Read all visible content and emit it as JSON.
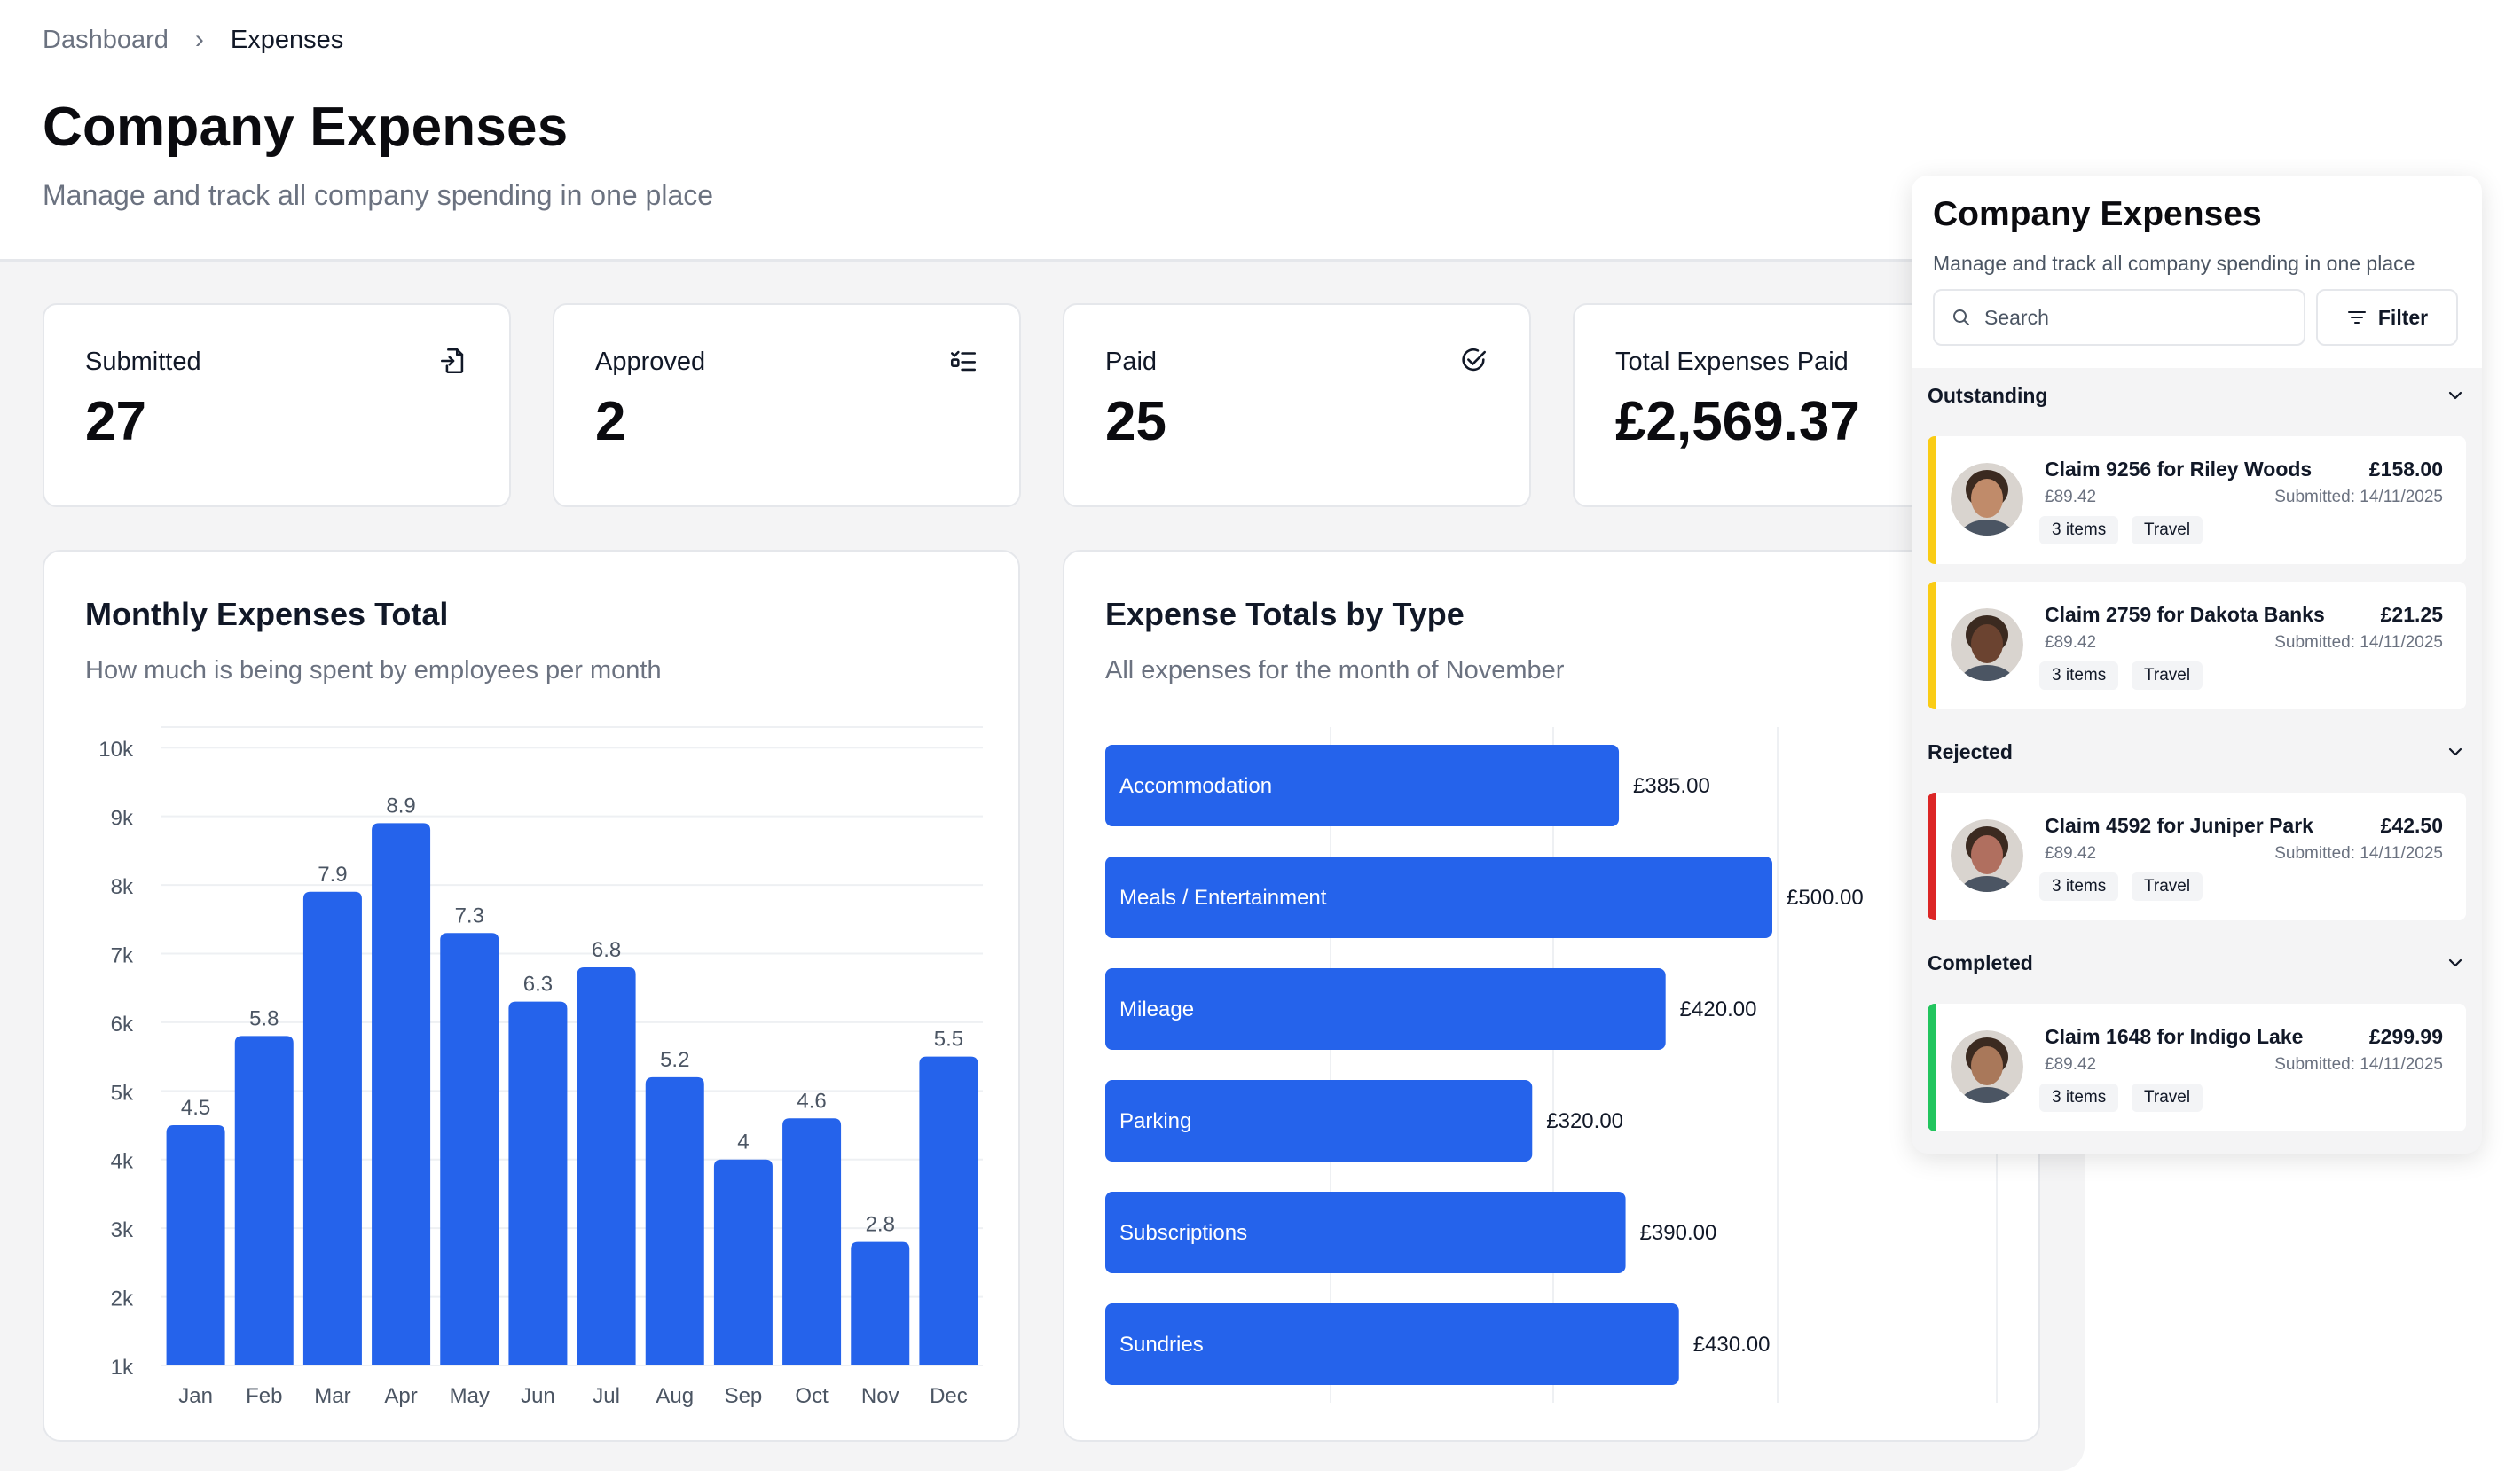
{
  "breadcrumb": {
    "parent": "Dashboard",
    "current": "Expenses"
  },
  "page": {
    "title": "Company Expenses",
    "subtitle": "Manage and track all company spending in one place"
  },
  "stats": [
    {
      "label": "Submitted",
      "value": "27",
      "icon": "file-import-icon"
    },
    {
      "label": "Approved",
      "value": "2",
      "icon": "checklist-icon"
    },
    {
      "label": "Paid",
      "value": "25",
      "icon": "check-circle-icon"
    },
    {
      "label": "Total Expenses Paid",
      "value": "£2,569.37"
    }
  ],
  "monthly_chart": {
    "title": "Monthly Expenses Total",
    "subtitle": "How much is being spent by employees per month"
  },
  "type_chart": {
    "title": "Expense Totals by Type",
    "subtitle": "All expenses for the month of November"
  },
  "chart_data": [
    {
      "type": "bar",
      "title": "Monthly Expenses Total",
      "subtitle": "How much is being spent by employees per month",
      "categories": [
        "Jan",
        "Feb",
        "Mar",
        "Apr",
        "May",
        "Jun",
        "Jul",
        "Aug",
        "Sep",
        "Oct",
        "Nov",
        "Dec"
      ],
      "values": [
        4.5,
        5.8,
        7.9,
        8.9,
        7.3,
        6.3,
        6.8,
        5.2,
        4,
        4.6,
        2.8,
        5.5
      ],
      "data_labels": [
        "4.5",
        "5.8",
        "7.9",
        "8.9",
        "7.3",
        "6.3",
        "6.8",
        "5.2",
        "4",
        "4.6",
        "2.8",
        "5.5"
      ],
      "y_ticks": [
        "10k",
        "9k",
        "8k",
        "7k",
        "6k",
        "5k",
        "4k",
        "3k",
        "2k",
        "1k"
      ],
      "ylim": [
        1,
        10.3
      ],
      "grid": true,
      "color": "#2563eb"
    },
    {
      "type": "bar",
      "orientation": "horizontal",
      "title": "Expense Totals by Type",
      "subtitle": "All expenses for the month of November",
      "categories": [
        "Accommodation",
        "Meals / Entertainment",
        "Mileage",
        "Parking",
        "Subscriptions",
        "Sundries"
      ],
      "values": [
        385,
        500,
        420,
        320,
        390,
        430
      ],
      "data_labels": [
        "£385.00",
        "£500.00",
        "£420.00",
        "£320.00",
        "£390.00",
        "£430.00"
      ],
      "xlim": [
        0,
        500
      ],
      "grid": true,
      "color": "#2563eb"
    }
  ],
  "side_panel": {
    "title": "Company Expenses",
    "subtitle": "Manage and track all company spending in one place",
    "search_placeholder": "Search",
    "filter_label": "Filter",
    "sections": [
      {
        "name": "Outstanding",
        "color": "#facc15",
        "claims": [
          {
            "title": "Claim 9256 for Riley Woods",
            "amount": "£158.00",
            "sub": "£89.42",
            "date": "Submitted: 14/11/2025",
            "items": "3 items",
            "category": "Travel",
            "avatar": "#c08b6a"
          },
          {
            "title": "Claim 2759 for Dakota Banks",
            "amount": "£21.25",
            "sub": "£89.42",
            "date": "Submitted: 14/11/2025",
            "items": "3 items",
            "category": "Travel",
            "avatar": "#6b4330"
          }
        ]
      },
      {
        "name": "Rejected",
        "color": "#dc2626",
        "claims": [
          {
            "title": "Claim 4592 for Juniper Park",
            "amount": "£42.50",
            "sub": "£89.42",
            "date": "Submitted: 14/11/2025",
            "items": "3 items",
            "category": "Travel",
            "avatar": "#b06f5f"
          }
        ]
      },
      {
        "name": "Completed",
        "color": "#22c55e",
        "claims": [
          {
            "title": "Claim 1648 for Indigo Lake",
            "amount": "£299.99",
            "sub": "£89.42",
            "date": "Submitted: 14/11/2025",
            "items": "3 items",
            "category": "Travel",
            "avatar": "#a9785a"
          }
        ]
      }
    ]
  }
}
